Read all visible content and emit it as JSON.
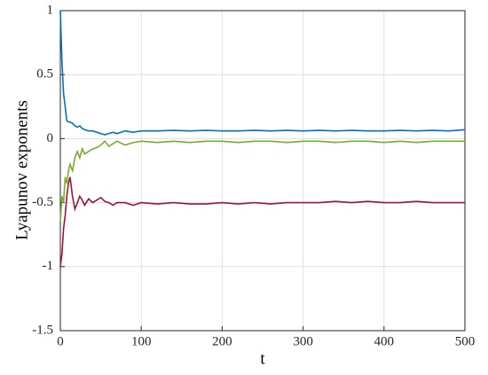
{
  "chart_data": {
    "type": "line",
    "xlabel": "t",
    "ylabel": "Lyapunov exponents",
    "x": [
      0,
      2,
      4,
      6,
      8,
      10,
      12,
      15,
      18,
      21,
      24,
      27,
      30,
      35,
      40,
      45,
      50,
      55,
      60,
      65,
      70,
      80,
      90,
      100,
      120,
      140,
      160,
      180,
      200,
      220,
      240,
      260,
      280,
      300,
      320,
      340,
      360,
      380,
      400,
      420,
      440,
      460,
      480,
      500
    ],
    "series": [
      {
        "color": "#0072bd",
        "values": [
          1,
          0.6,
          0.35,
          0.25,
          0.14,
          0.13,
          0.13,
          0.12,
          0.1,
          0.09,
          0.1,
          0.08,
          0.07,
          0.06,
          0.06,
          0.05,
          0.04,
          0.03,
          0.04,
          0.05,
          0.04,
          0.06,
          0.05,
          0.06,
          0.06,
          0.065,
          0.06,
          0.065,
          0.06,
          0.06,
          0.065,
          0.06,
          0.065,
          0.06,
          0.065,
          0.06,
          0.065,
          0.06,
          0.06,
          0.065,
          0.06,
          0.065,
          0.06,
          0.07
        ]
      },
      {
        "color": "#77ac30",
        "values": [
          -0.65,
          -0.45,
          -0.5,
          -0.3,
          -0.35,
          -0.25,
          -0.2,
          -0.25,
          -0.15,
          -0.1,
          -0.15,
          -0.08,
          -0.12,
          -0.1,
          -0.08,
          -0.07,
          -0.05,
          -0.02,
          -0.06,
          -0.04,
          -0.02,
          -0.05,
          -0.03,
          -0.02,
          -0.03,
          -0.02,
          -0.03,
          -0.02,
          -0.02,
          -0.03,
          -0.02,
          -0.02,
          -0.03,
          -0.02,
          -0.02,
          -0.03,
          -0.02,
          -0.02,
          -0.03,
          -0.02,
          -0.03,
          -0.02,
          -0.02,
          -0.02
        ]
      },
      {
        "color": "#a2142f",
        "values": [
          -1,
          -0.9,
          -0.7,
          -0.6,
          -0.45,
          -0.35,
          -0.3,
          -0.45,
          -0.55,
          -0.5,
          -0.45,
          -0.48,
          -0.52,
          -0.47,
          -0.5,
          -0.48,
          -0.46,
          -0.49,
          -0.5,
          -0.52,
          -0.5,
          -0.5,
          -0.52,
          -0.5,
          -0.51,
          -0.5,
          -0.51,
          -0.51,
          -0.5,
          -0.51,
          -0.5,
          -0.51,
          -0.5,
          -0.5,
          -0.5,
          -0.49,
          -0.5,
          -0.49,
          -0.5,
          -0.5,
          -0.49,
          -0.5,
          -0.5,
          -0.5
        ]
      }
    ],
    "xlim": [
      0,
      500
    ],
    "xticks": [
      0,
      100,
      200,
      300,
      400,
      500
    ],
    "ylim": [
      -1.5,
      1
    ],
    "yticks": [
      -1.5,
      -1,
      -0.5,
      0,
      0.5,
      1
    ],
    "grid": true
  }
}
